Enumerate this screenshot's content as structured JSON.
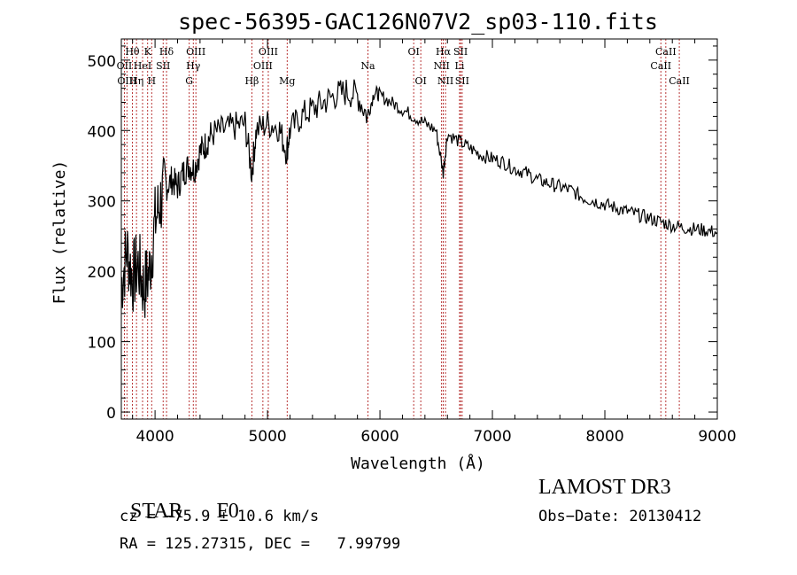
{
  "chart_data": {
    "type": "line",
    "title": "spec-56395-GAC126N07V2_sp03-110.fits",
    "xlabel": "Wavelength (Å)",
    "ylabel": "Flux (relative)",
    "xlim": [
      3700,
      9000
    ],
    "ylim": [
      -10,
      530
    ],
    "xticks": [
      4000,
      5000,
      6000,
      7000,
      8000,
      9000
    ],
    "yticks": [
      0,
      100,
      200,
      300,
      400,
      500
    ],
    "grid": false,
    "line_color": "#000000",
    "marker_color": "#b22222",
    "series": [
      {
        "values_x": [
          3700,
          3750,
          3800,
          3850,
          3900,
          3950,
          4000,
          4050,
          4100,
          4150,
          4200,
          4250,
          4300,
          4350,
          4400,
          4450,
          4500,
          4600,
          4700,
          4800,
          4860,
          4900,
          5000,
          5100,
          5170,
          5200,
          5300,
          5400,
          5500,
          5600,
          5700,
          5800,
          5890,
          5950,
          6000,
          6100,
          6200,
          6300,
          6400,
          6500,
          6563,
          6600,
          6700,
          6800,
          6900,
          7000,
          7100,
          7200,
          7300,
          7400,
          7500,
          7600,
          7700,
          7800,
          7900,
          8000,
          8100,
          8200,
          8300,
          8400,
          8500,
          8600,
          8700,
          8800,
          8900,
          9000
        ],
        "values_y": [
          180,
          230,
          190,
          210,
          175,
          200,
          270,
          300,
          320,
          330,
          320,
          340,
          350,
          345,
          370,
          380,
          395,
          400,
          405,
          410,
          340,
          400,
          410,
          405,
          370,
          400,
          420,
          430,
          440,
          450,
          455,
          450,
          420,
          455,
          450,
          440,
          430,
          420,
          410,
          400,
          340,
          395,
          385,
          375,
          365,
          360,
          355,
          345,
          340,
          330,
          325,
          320,
          315,
          305,
          300,
          295,
          290,
          285,
          280,
          275,
          270,
          265,
          262,
          260,
          258,
          255
        ]
      }
    ],
    "line_markers": [
      {
        "wavelength": 3727,
        "label": "OII",
        "row": 2
      },
      {
        "wavelength": 3750,
        "label": "OIII",
        "row": 3
      },
      {
        "wavelength": 3798,
        "label": "Hθ",
        "row": 1
      },
      {
        "wavelength": 3835,
        "label": "Hη",
        "row": 3
      },
      {
        "wavelength": 3889,
        "label": "HeI",
        "row": 2
      },
      {
        "wavelength": 3934,
        "label": "K",
        "row": 1
      },
      {
        "wavelength": 3970,
        "label": "H",
        "row": 3
      },
      {
        "wavelength": 4072,
        "label": "SII",
        "row": 2
      },
      {
        "wavelength": 4102,
        "label": "Hδ",
        "row": 1
      },
      {
        "wavelength": 4304,
        "label": "G",
        "row": 3
      },
      {
        "wavelength": 4340,
        "label": "Hγ",
        "row": 2
      },
      {
        "wavelength": 4363,
        "label": "OIII",
        "row": 1
      },
      {
        "wavelength": 4861,
        "label": "Hβ",
        "row": 3
      },
      {
        "wavelength": 4959,
        "label": "OIII",
        "row": 2
      },
      {
        "wavelength": 5007,
        "label": "OIII",
        "row": 1
      },
      {
        "wavelength": 5175,
        "label": "Mg",
        "row": 3
      },
      {
        "wavelength": 5893,
        "label": "Na",
        "row": 2
      },
      {
        "wavelength": 6300,
        "label": "OI",
        "row": 1
      },
      {
        "wavelength": 6363,
        "label": "OI",
        "row": 3
      },
      {
        "wavelength": 6548,
        "label": "NII",
        "row": 2
      },
      {
        "wavelength": 6563,
        "label": "Hα",
        "row": 1
      },
      {
        "wavelength": 6583,
        "label": "NII",
        "row": 3
      },
      {
        "wavelength": 6708,
        "label": "Li",
        "row": 2
      },
      {
        "wavelength": 6717,
        "label": "SII",
        "row": 1
      },
      {
        "wavelength": 6731,
        "label": "SII",
        "row": 3
      },
      {
        "wavelength": 8498,
        "label": "CaII",
        "row": 2
      },
      {
        "wavelength": 8542,
        "label": "CaII",
        "row": 1
      },
      {
        "wavelength": 8662,
        "label": "CaII",
        "row": 3
      }
    ]
  },
  "footer": {
    "object_type": "STAR",
    "spectral_class": "F0",
    "survey": "LAMOST DR3",
    "redshift_text": "cz = −75.9 ± 10.6 km/s",
    "obs_date_text": "Obs−Date: 20130412",
    "coords_text": "RA = 125.27315, DEC =   7.99799"
  }
}
